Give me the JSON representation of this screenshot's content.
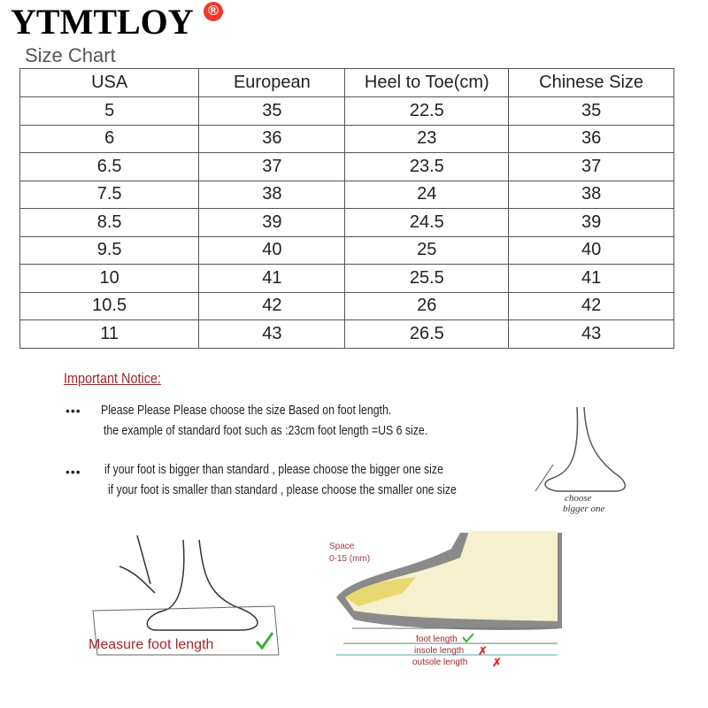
{
  "brand": {
    "name": "YTMTLOY",
    "registered_mark": "®"
  },
  "size_chart": {
    "title": "Size Chart",
    "columns": [
      "USA",
      "European",
      "Heel to Toe(cm)",
      "Chinese Size"
    ],
    "rows": [
      [
        "5",
        "35",
        "22.5",
        "35"
      ],
      [
        "6",
        "36",
        "23",
        "36"
      ],
      [
        "6.5",
        "37",
        "23.5",
        "37"
      ],
      [
        "7.5",
        "38",
        "24",
        "38"
      ],
      [
        "8.5",
        "39",
        "24.5",
        "39"
      ],
      [
        "9.5",
        "40",
        "25",
        "40"
      ],
      [
        "10",
        "41",
        "25.5",
        "41"
      ],
      [
        "10.5",
        "42",
        "26",
        "42"
      ],
      [
        "11",
        "43",
        "26.5",
        "43"
      ]
    ]
  },
  "notice": {
    "title": "Important Notice:",
    "bullet": "•••",
    "lines": [
      "Please Please Please choose the size Based on foot length.",
      "the example of standard foot such as :23cm foot length =US 6 size.",
      "if your foot is bigger than standard , please choose the bigger one size",
      "if your foot is smaller than standard , please choose the smaller one size"
    ],
    "choose_label_1": "choose",
    "choose_label_2": "bigger one"
  },
  "diagram": {
    "measure_label": "Measure foot length",
    "space_label_1": "Space",
    "space_label_2": "0-15 (mm)",
    "foot_length": "foot length",
    "insole_length": "insole length",
    "outsole_length": "outsole length",
    "colors": {
      "check": "#3fae3a",
      "cross": "#e0302a",
      "label": "#a0282a"
    }
  }
}
